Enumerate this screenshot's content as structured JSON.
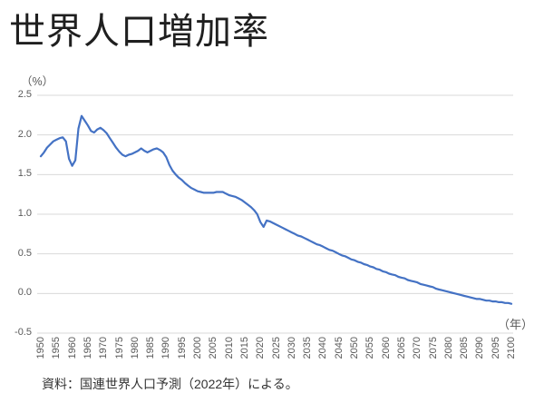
{
  "title": "世界人口増加率",
  "source": "資料：国連世界人口予測（2022年）による。",
  "chart_data": {
    "type": "line",
    "title": "世界人口増加率",
    "series_name": "世界人口増加率",
    "y_unit_label": "（%）",
    "x_unit_label": "（年）",
    "xlabel": "年",
    "ylabel": "%",
    "x_start": 1950,
    "x_end": 2100,
    "x_step": 1,
    "ylim": [
      -0.5,
      2.5
    ],
    "grid": "horizontal",
    "legend": "none",
    "line_color": "#4472C4",
    "gridline_color": "#D9D9D9",
    "tick_color": "#595959",
    "yticks": [
      "2.5",
      "2.0",
      "1.5",
      "1.0",
      "0.5",
      "0.0",
      "-0.5"
    ],
    "xticks": [
      "1950",
      "1955",
      "1960",
      "1965",
      "1970",
      "1975",
      "1980",
      "1985",
      "1990",
      "1995",
      "2000",
      "2005",
      "2010",
      "2015",
      "2020",
      "2025",
      "2030",
      "2035",
      "2040",
      "2045",
      "2050",
      "2055",
      "2060",
      "2065",
      "2070",
      "2075",
      "2080",
      "2085",
      "2090",
      "2095",
      "2100"
    ],
    "values": [
      1.73,
      1.78,
      1.84,
      1.88,
      1.92,
      1.94,
      1.96,
      1.97,
      1.92,
      1.7,
      1.61,
      1.68,
      2.08,
      2.24,
      2.18,
      2.12,
      2.05,
      2.03,
      2.07,
      2.09,
      2.06,
      2.02,
      1.96,
      1.9,
      1.84,
      1.79,
      1.75,
      1.73,
      1.75,
      1.76,
      1.78,
      1.8,
      1.83,
      1.8,
      1.78,
      1.8,
      1.82,
      1.83,
      1.81,
      1.78,
      1.72,
      1.62,
      1.55,
      1.5,
      1.46,
      1.43,
      1.39,
      1.36,
      1.33,
      1.31,
      1.29,
      1.28,
      1.27,
      1.27,
      1.27,
      1.27,
      1.28,
      1.28,
      1.28,
      1.26,
      1.24,
      1.23,
      1.22,
      1.2,
      1.18,
      1.15,
      1.12,
      1.09,
      1.05,
      1.0,
      0.9,
      0.84,
      0.92,
      0.91,
      0.89,
      0.87,
      0.85,
      0.83,
      0.81,
      0.79,
      0.77,
      0.75,
      0.73,
      0.72,
      0.7,
      0.68,
      0.66,
      0.64,
      0.62,
      0.61,
      0.59,
      0.57,
      0.55,
      0.54,
      0.52,
      0.5,
      0.48,
      0.47,
      0.45,
      0.43,
      0.42,
      0.4,
      0.39,
      0.37,
      0.36,
      0.34,
      0.33,
      0.31,
      0.3,
      0.28,
      0.27,
      0.25,
      0.24,
      0.23,
      0.21,
      0.2,
      0.19,
      0.17,
      0.16,
      0.15,
      0.14,
      0.12,
      0.11,
      0.1,
      0.09,
      0.08,
      0.06,
      0.05,
      0.04,
      0.03,
      0.02,
      0.01,
      0.0,
      -0.01,
      -0.02,
      -0.03,
      -0.04,
      -0.05,
      -0.06,
      -0.07,
      -0.07,
      -0.08,
      -0.09,
      -0.09,
      -0.1,
      -0.1,
      -0.11,
      -0.11,
      -0.12,
      -0.12,
      -0.13
    ]
  }
}
